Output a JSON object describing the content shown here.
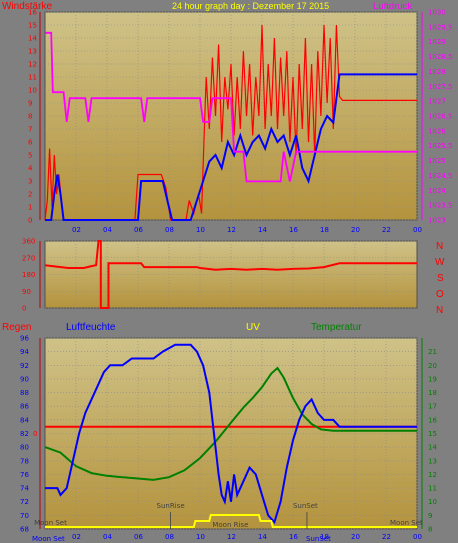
{
  "colors": {
    "background": "#808080",
    "plot_top": "#cfc288",
    "plot_bottom": "#b4933d",
    "wind_gust": "#ff0000",
    "wind_avg": "#0000ff",
    "pressure": "#ff00ff",
    "direction": "#ff0000",
    "rain": "#ff0000",
    "humidity": "#0000ff",
    "uv": "#ffff00",
    "temperature": "#008000",
    "title": "#ffff00",
    "compass": "#ff0000"
  },
  "header": {
    "left_label": "Windstärke",
    "title": "24 hour graph day : Dezember 17 2015",
    "right_label": "Luftdruck"
  },
  "direction_panel": {
    "compass": [
      "N",
      "W",
      "S",
      "O",
      "N"
    ]
  },
  "bottom_header": {
    "rain": "Regen",
    "humidity": "Luftfeuchte",
    "uv": "UV",
    "temperature": "Temperatur"
  },
  "annotations": {
    "sunrise": "SunRise",
    "sunset": "SunSet",
    "moonrise": "Moon Rise",
    "moonset": "Moon Set"
  },
  "chart_data": [
    {
      "type": "line",
      "name": "wind-pressure",
      "x_ticks": [
        "02",
        "04",
        "06",
        "08",
        "10",
        "12",
        "14",
        "16",
        "18",
        "20",
        "22",
        "00"
      ],
      "x_range": [
        0,
        24
      ],
      "ylim_left": [
        0,
        16
      ],
      "y_ticks_left": [
        "0",
        "1",
        "2",
        "3",
        "4",
        "5",
        "6",
        "7",
        "8",
        "9",
        "10",
        "11",
        "12",
        "13",
        "14",
        "15",
        "16"
      ],
      "ylim_right": [
        1023,
        1030
      ],
      "y_ticks_right": [
        "1023",
        "1023,5",
        "1024",
        "1024,5",
        "1025",
        "1025,5",
        "1026",
        "1026,5",
        "1027",
        "1027,5",
        "1028",
        "1028,5",
        "1029",
        "1029,5",
        "1030"
      ],
      "series": [
        {
          "key": "gust",
          "points": [
            [
              0,
              0
            ],
            [
              0.15,
              1.5
            ],
            [
              0.3,
              5.5
            ],
            [
              0.45,
              1.0
            ],
            [
              0.6,
              5.0
            ],
            [
              0.75,
              2.0
            ],
            [
              0.9,
              3.5
            ],
            [
              1.05,
              1.5
            ],
            [
              1.2,
              0
            ],
            [
              1.5,
              0
            ],
            [
              5.8,
              0
            ],
            [
              6,
              3.5
            ],
            [
              7.5,
              3.5
            ],
            [
              7.8,
              2.5
            ],
            [
              8.1,
              0
            ],
            [
              9.1,
              0
            ],
            [
              9.3,
              1.5
            ],
            [
              9.6,
              0.5
            ],
            [
              9.9,
              2
            ],
            [
              10.1,
              0.5
            ],
            [
              10.25,
              6
            ],
            [
              10.4,
              11
            ],
            [
              10.6,
              7
            ],
            [
              10.8,
              12.5
            ],
            [
              11.0,
              8
            ],
            [
              11.2,
              13.5
            ],
            [
              11.4,
              6
            ],
            [
              11.6,
              11
            ],
            [
              11.8,
              8.5
            ],
            [
              12.0,
              12
            ],
            [
              12.2,
              6.5
            ],
            [
              12.4,
              11
            ],
            [
              12.6,
              7
            ],
            [
              12.8,
              13
            ],
            [
              13.0,
              8
            ],
            [
              13.2,
              12
            ],
            [
              13.4,
              6.5
            ],
            [
              13.6,
              11
            ],
            [
              13.8,
              8
            ],
            [
              14.0,
              15
            ],
            [
              14.2,
              7
            ],
            [
              14.4,
              12
            ],
            [
              14.6,
              8
            ],
            [
              14.8,
              14
            ],
            [
              15.0,
              7
            ],
            [
              15.2,
              12.5
            ],
            [
              15.4,
              8
            ],
            [
              15.6,
              13
            ],
            [
              15.8,
              6
            ],
            [
              16.0,
              11
            ],
            [
              16.2,
              5
            ],
            [
              16.4,
              12
            ],
            [
              16.6,
              7
            ],
            [
              16.8,
              14
            ],
            [
              17.0,
              6
            ],
            [
              17.2,
              12
            ],
            [
              17.4,
              5
            ],
            [
              17.6,
              13
            ],
            [
              17.8,
              8
            ],
            [
              18.0,
              15
            ],
            [
              18.2,
              9
            ],
            [
              18.4,
              14
            ],
            [
              18.6,
              7
            ],
            [
              18.8,
              15
            ],
            [
              19.0,
              9.5
            ],
            [
              19.2,
              9.2
            ],
            [
              24,
              9.2
            ]
          ]
        },
        {
          "key": "average",
          "points": [
            [
              0,
              0
            ],
            [
              0.4,
              0
            ],
            [
              0.6,
              2
            ],
            [
              0.8,
              3.5
            ],
            [
              1.0,
              2
            ],
            [
              1.2,
              0
            ],
            [
              6,
              0
            ],
            [
              6.2,
              3
            ],
            [
              7.6,
              3
            ],
            [
              7.9,
              1.5
            ],
            [
              8.2,
              0
            ],
            [
              9.4,
              0
            ],
            [
              9.8,
              1.5
            ],
            [
              10.2,
              3
            ],
            [
              10.6,
              4.5
            ],
            [
              11.0,
              5
            ],
            [
              11.4,
              4
            ],
            [
              11.8,
              6
            ],
            [
              12.2,
              5
            ],
            [
              12.6,
              6.5
            ],
            [
              13.0,
              5
            ],
            [
              13.4,
              6
            ],
            [
              13.8,
              6.5
            ],
            [
              14.2,
              5.5
            ],
            [
              14.6,
              7
            ],
            [
              15.0,
              6
            ],
            [
              15.4,
              6.5
            ],
            [
              15.8,
              5
            ],
            [
              16.2,
              6.5
            ],
            [
              16.6,
              4
            ],
            [
              17.0,
              3
            ],
            [
              17.4,
              5
            ],
            [
              17.8,
              7
            ],
            [
              18.2,
              8
            ],
            [
              18.6,
              7.5
            ],
            [
              19.0,
              11.2
            ],
            [
              24,
              11.2
            ]
          ]
        },
        {
          "key": "pressure",
          "points": [
            [
              0,
              1029.3
            ],
            [
              0.4,
              1029.3
            ],
            [
              0.5,
              1027.3
            ],
            [
              1.2,
              1027.3
            ],
            [
              1.4,
              1026.3
            ],
            [
              1.6,
              1027.1
            ],
            [
              2.6,
              1027.1
            ],
            [
              2.8,
              1026.3
            ],
            [
              3.0,
              1027.1
            ],
            [
              6.2,
              1027.1
            ],
            [
              6.4,
              1026.3
            ],
            [
              6.6,
              1027.1
            ],
            [
              10.0,
              1027.1
            ],
            [
              10.2,
              1026.3
            ],
            [
              10.6,
              1026.3
            ],
            [
              10.8,
              1027.1
            ],
            [
              12.0,
              1027.1
            ],
            [
              12.2,
              1025.3
            ],
            [
              12.8,
              1025.3
            ],
            [
              13.0,
              1024.3
            ],
            [
              15.2,
              1024.3
            ],
            [
              15.4,
              1025.3
            ],
            [
              15.8,
              1024.3
            ],
            [
              16.2,
              1025.3
            ],
            [
              24,
              1025.3
            ]
          ]
        }
      ]
    },
    {
      "type": "line",
      "name": "wind-direction",
      "x_range": [
        0,
        24
      ],
      "ylim": [
        0,
        360
      ],
      "y_ticks": [
        "0",
        "90",
        "180",
        "270",
        "360"
      ],
      "series": [
        {
          "key": "direction",
          "points": [
            [
              0,
              230
            ],
            [
              1.5,
              215
            ],
            [
              2.5,
              215
            ],
            [
              3.0,
              225
            ],
            [
              3.3,
              230
            ],
            [
              3.45,
              360
            ],
            [
              3.6,
              360
            ],
            [
              3.6,
              0
            ],
            [
              4.1,
              0
            ],
            [
              4.1,
              240
            ],
            [
              6.2,
              240
            ],
            [
              6.4,
              220
            ],
            [
              9.8,
              220
            ],
            [
              10.0,
              215
            ],
            [
              11,
              205
            ],
            [
              12,
              210
            ],
            [
              13,
              205
            ],
            [
              14,
              210
            ],
            [
              15,
              205
            ],
            [
              16,
              210
            ],
            [
              17,
              212
            ],
            [
              18,
              220
            ],
            [
              19,
              240
            ],
            [
              24,
              240
            ]
          ]
        }
      ]
    },
    {
      "type": "line",
      "name": "rain-humidity-uv-temperature",
      "x_ticks": [
        "02",
        "04",
        "06",
        "08",
        "10",
        "12",
        "14",
        "16",
        "18",
        "20",
        "22",
        "00"
      ],
      "x_range": [
        0,
        24
      ],
      "ylim_humidity": [
        68,
        96
      ],
      "y_ticks_humidity": [
        "68",
        "70",
        "72",
        "74",
        "76",
        "78",
        "80",
        "82",
        "84",
        "86",
        "88",
        "90",
        "92",
        "94",
        "96"
      ],
      "ylim_temperature": [
        8,
        22
      ],
      "y_ticks_temperature": [
        "8",
        "9",
        "10",
        "11",
        "12",
        "13",
        "14",
        "15",
        "16",
        "17",
        "18",
        "19",
        "20",
        "21"
      ],
      "rain_tick": "0",
      "series": [
        {
          "key": "rain",
          "points": [
            [
              0,
              0
            ],
            [
              24,
              0
            ]
          ]
        },
        {
          "key": "humidity",
          "points": [
            [
              0,
              74
            ],
            [
              0.8,
              74
            ],
            [
              1.0,
              73
            ],
            [
              1.4,
              74
            ],
            [
              1.8,
              78
            ],
            [
              2.2,
              82
            ],
            [
              2.6,
              85
            ],
            [
              3.0,
              87
            ],
            [
              3.4,
              89
            ],
            [
              3.8,
              91
            ],
            [
              4.2,
              92
            ],
            [
              5.0,
              92
            ],
            [
              5.6,
              93
            ],
            [
              6.4,
              93
            ],
            [
              7.0,
              93
            ],
            [
              7.6,
              94
            ],
            [
              8.4,
              95
            ],
            [
              9.4,
              95
            ],
            [
              9.8,
              94
            ],
            [
              10.2,
              92
            ],
            [
              10.6,
              88
            ],
            [
              10.8,
              84
            ],
            [
              11.0,
              80
            ],
            [
              11.2,
              76
            ],
            [
              11.4,
              73
            ],
            [
              11.6,
              72
            ],
            [
              11.8,
              75
            ],
            [
              12.0,
              72
            ],
            [
              12.2,
              76
            ],
            [
              12.4,
              73
            ],
            [
              12.8,
              75
            ],
            [
              13.2,
              77
            ],
            [
              13.6,
              76
            ],
            [
              14.0,
              73
            ],
            [
              14.4,
              70
            ],
            [
              14.8,
              69
            ],
            [
              15.2,
              72
            ],
            [
              15.6,
              77
            ],
            [
              16.0,
              81
            ],
            [
              16.4,
              84
            ],
            [
              16.8,
              86
            ],
            [
              17.2,
              87
            ],
            [
              17.6,
              85
            ],
            [
              18.0,
              84
            ],
            [
              18.6,
              84
            ],
            [
              19.0,
              83
            ],
            [
              24,
              83
            ]
          ]
        },
        {
          "key": "uv",
          "points": [
            [
              0,
              0
            ],
            [
              9.6,
              0
            ],
            [
              9.7,
              1
            ],
            [
              10.6,
              1
            ],
            [
              10.7,
              2
            ],
            [
              13.8,
              2
            ],
            [
              13.9,
              1
            ],
            [
              14.6,
              1
            ],
            [
              14.7,
              0
            ],
            [
              24,
              0
            ]
          ]
        },
        {
          "key": "temperature",
          "points": [
            [
              0,
              14
            ],
            [
              1.0,
              13.6
            ],
            [
              2.0,
              12.6
            ],
            [
              3.0,
              12.1
            ],
            [
              4.0,
              11.9
            ],
            [
              5.0,
              11.8
            ],
            [
              6.0,
              11.7
            ],
            [
              7.0,
              11.6
            ],
            [
              8.0,
              11.8
            ],
            [
              9.0,
              12.3
            ],
            [
              10.0,
              13.2
            ],
            [
              11.0,
              14.4
            ],
            [
              12.0,
              15.8
            ],
            [
              12.8,
              16.9
            ],
            [
              13.4,
              17.6
            ],
            [
              14.0,
              18.4
            ],
            [
              14.6,
              19.4
            ],
            [
              15.0,
              19.8
            ],
            [
              15.4,
              19.1
            ],
            [
              16.0,
              17.6
            ],
            [
              16.6,
              16.4
            ],
            [
              17.2,
              15.7
            ],
            [
              17.8,
              15.3
            ],
            [
              18.6,
              15.2
            ],
            [
              24,
              15.2
            ]
          ]
        }
      ],
      "markers": [
        {
          "key": "sunrise",
          "x": 8.1
        },
        {
          "key": "sunset",
          "x": 16.9
        },
        {
          "key": "moonrise",
          "x": 11.7
        },
        {
          "key": "moonset",
          "x": 0.2
        },
        {
          "key": "moonset",
          "x": 23.9
        }
      ]
    }
  ]
}
